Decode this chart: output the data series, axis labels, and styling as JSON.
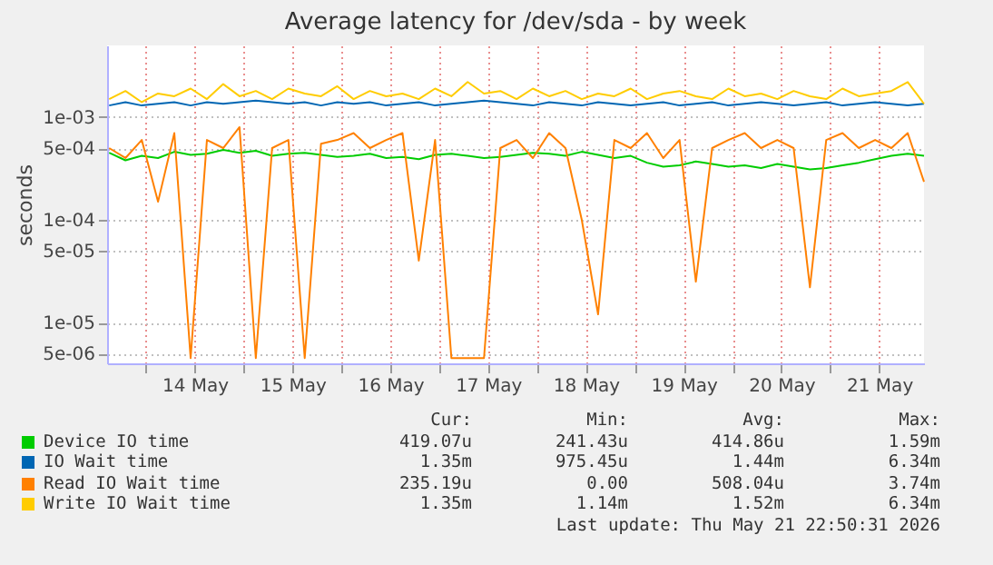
{
  "chart_data": {
    "type": "line",
    "title": "Average latency for /dev/sda - by week",
    "ylabel": "seconds",
    "log": "y",
    "grid": true,
    "legend": "bottom",
    "x": [
      "2026-05-13T15:00",
      "2026-05-13T19:00",
      "2026-05-13T23:00",
      "2026-05-14T03:00",
      "2026-05-14T07:00",
      "2026-05-14T11:00",
      "2026-05-14T15:00",
      "2026-05-14T19:00",
      "2026-05-14T23:00",
      "2026-05-15T03:00",
      "2026-05-15T07:00",
      "2026-05-15T11:00",
      "2026-05-15T15:00",
      "2026-05-15T19:00",
      "2026-05-15T23:00",
      "2026-05-16T03:00",
      "2026-05-16T07:00",
      "2026-05-16T11:00",
      "2026-05-16T15:00",
      "2026-05-16T19:00",
      "2026-05-16T23:00",
      "2026-05-17T03:00",
      "2026-05-17T07:00",
      "2026-05-17T11:00",
      "2026-05-17T15:00",
      "2026-05-17T19:00",
      "2026-05-17T23:00",
      "2026-05-18T03:00",
      "2026-05-18T07:00",
      "2026-05-18T11:00",
      "2026-05-18T15:00",
      "2026-05-18T19:00",
      "2026-05-18T23:00",
      "2026-05-19T03:00",
      "2026-05-19T07:00",
      "2026-05-19T11:00",
      "2026-05-19T15:00",
      "2026-05-19T19:00",
      "2026-05-19T23:00",
      "2026-05-20T03:00",
      "2026-05-20T07:00",
      "2026-05-20T11:00",
      "2026-05-20T15:00",
      "2026-05-20T19:00",
      "2026-05-20T23:00",
      "2026-05-21T03:00",
      "2026-05-21T07:00",
      "2026-05-21T11:00",
      "2026-05-21T15:00",
      "2026-05-21T19:00",
      "2026-05-21T23:00"
    ],
    "xlim": [
      "2026-05-13T14:30",
      "2026-05-21T23:00"
    ],
    "xticks": [
      {
        "value": "2026-05-14T00:00",
        "label": null
      },
      {
        "value": "2026-05-14T12:00",
        "label": "14 May"
      },
      {
        "value": "2026-05-15T00:00",
        "label": null
      },
      {
        "value": "2026-05-15T12:00",
        "label": "15 May"
      },
      {
        "value": "2026-05-16T00:00",
        "label": null
      },
      {
        "value": "2026-05-16T12:00",
        "label": "16 May"
      },
      {
        "value": "2026-05-17T00:00",
        "label": null
      },
      {
        "value": "2026-05-17T12:00",
        "label": "17 May"
      },
      {
        "value": "2026-05-18T00:00",
        "label": null
      },
      {
        "value": "2026-05-18T12:00",
        "label": "18 May"
      },
      {
        "value": "2026-05-19T00:00",
        "label": null
      },
      {
        "value": "2026-05-19T12:00",
        "label": "19 May"
      },
      {
        "value": "2026-05-20T00:00",
        "label": null
      },
      {
        "value": "2026-05-20T12:00",
        "label": "20 May"
      },
      {
        "value": "2026-05-21T00:00",
        "label": null
      },
      {
        "value": "2026-05-21T12:00",
        "label": "21 May"
      }
    ],
    "ylim": [
      4e-06,
      0.005
    ],
    "yticks": [
      {
        "value": 5e-06,
        "label": "5e-06"
      },
      {
        "value": 1e-05,
        "label": "1e-05"
      },
      {
        "value": 5e-05,
        "label": "5e-05"
      },
      {
        "value": 0.0001,
        "label": "1e-04"
      },
      {
        "value": 0.0005,
        "label": "5e-04"
      },
      {
        "value": 0.001,
        "label": "1e-03"
      }
    ],
    "series": [
      {
        "name": "Device IO time",
        "color": "#00cc00",
        "values": [
          0.00045,
          0.00038,
          0.00042,
          0.0004,
          0.00046,
          0.00043,
          0.00044,
          0.00048,
          0.00045,
          0.00047,
          0.00042,
          0.00044,
          0.00045,
          0.00043,
          0.00041,
          0.00042,
          0.00044,
          0.0004,
          0.00041,
          0.00039,
          0.00043,
          0.00044,
          0.00042,
          0.0004,
          0.00041,
          0.00043,
          0.00045,
          0.00044,
          0.00042,
          0.00046,
          0.00043,
          0.0004,
          0.00042,
          0.00036,
          0.00033,
          0.00034,
          0.00037,
          0.00035,
          0.00033,
          0.00034,
          0.00032,
          0.00035,
          0.00033,
          0.00031,
          0.00032,
          0.00034,
          0.00036,
          0.00039,
          0.00042,
          0.00044,
          0.00042
        ]
      },
      {
        "name": "IO Wait time",
        "color": "#0066b3",
        "values": [
          0.0013,
          0.0014,
          0.0013,
          0.00135,
          0.0014,
          0.0013,
          0.0014,
          0.00135,
          0.0014,
          0.00145,
          0.0014,
          0.00135,
          0.0014,
          0.0013,
          0.0014,
          0.00135,
          0.0014,
          0.0013,
          0.00135,
          0.0014,
          0.0013,
          0.00135,
          0.0014,
          0.00145,
          0.0014,
          0.00135,
          0.0013,
          0.0014,
          0.00135,
          0.0013,
          0.0014,
          0.00135,
          0.0013,
          0.00135,
          0.0014,
          0.0013,
          0.00135,
          0.0014,
          0.0013,
          0.00135,
          0.0014,
          0.00135,
          0.0013,
          0.00135,
          0.0014,
          0.0013,
          0.00135,
          0.0014,
          0.00135,
          0.0013,
          0.00135
        ]
      },
      {
        "name": "Read IO Wait time",
        "color": "#ff8000",
        "values": [
          0.0005,
          0.0004,
          0.0006,
          0.00015,
          0.0007,
          4.5e-06,
          0.0006,
          0.0005,
          0.0008,
          4.5e-06,
          0.0005,
          0.0006,
          4.5e-06,
          0.00055,
          0.0006,
          0.0007,
          0.0005,
          0.0006,
          0.0007,
          4e-05,
          0.0006,
          4.5e-06,
          4.5e-06,
          4.5e-06,
          0.0005,
          0.0006,
          0.0004,
          0.0007,
          0.0005,
          0.0001,
          1.2e-05,
          0.0006,
          0.0005,
          0.0007,
          0.0004,
          0.0006,
          2.5e-05,
          0.0005,
          0.0006,
          0.0007,
          0.0005,
          0.0006,
          0.0005,
          2.2e-05,
          0.0006,
          0.0007,
          0.0005,
          0.0006,
          0.0005,
          0.0007,
          0.000235
        ]
      },
      {
        "name": "Write IO Wait time",
        "color": "#ffcc00",
        "values": [
          0.0015,
          0.0018,
          0.0014,
          0.0017,
          0.0016,
          0.0019,
          0.0015,
          0.0021,
          0.0016,
          0.0018,
          0.0015,
          0.0019,
          0.0017,
          0.0016,
          0.002,
          0.0015,
          0.0018,
          0.0016,
          0.0017,
          0.0015,
          0.0019,
          0.0016,
          0.0022,
          0.0017,
          0.0018,
          0.0015,
          0.0019,
          0.0016,
          0.0018,
          0.0015,
          0.0017,
          0.0016,
          0.0019,
          0.0015,
          0.0017,
          0.0018,
          0.0016,
          0.0015,
          0.0019,
          0.0016,
          0.0017,
          0.0015,
          0.0018,
          0.0016,
          0.0015,
          0.0019,
          0.0016,
          0.0017,
          0.0018,
          0.0022,
          0.00135
        ]
      }
    ],
    "annotations": [
      "Cur:",
      "Min:",
      "Avg:",
      "Max:",
      "419.07u",
      "241.43u",
      "414.86u",
      "1.59m",
      "1.35m",
      "975.45u",
      "1.44m",
      "6.34m",
      "235.19u",
      "0.00",
      "508.04u",
      "3.74m",
      "1.35m",
      "1.14m",
      "1.52m",
      "6.34m",
      "Last update: Thu May 21 22:50:31 2026"
    ]
  }
}
